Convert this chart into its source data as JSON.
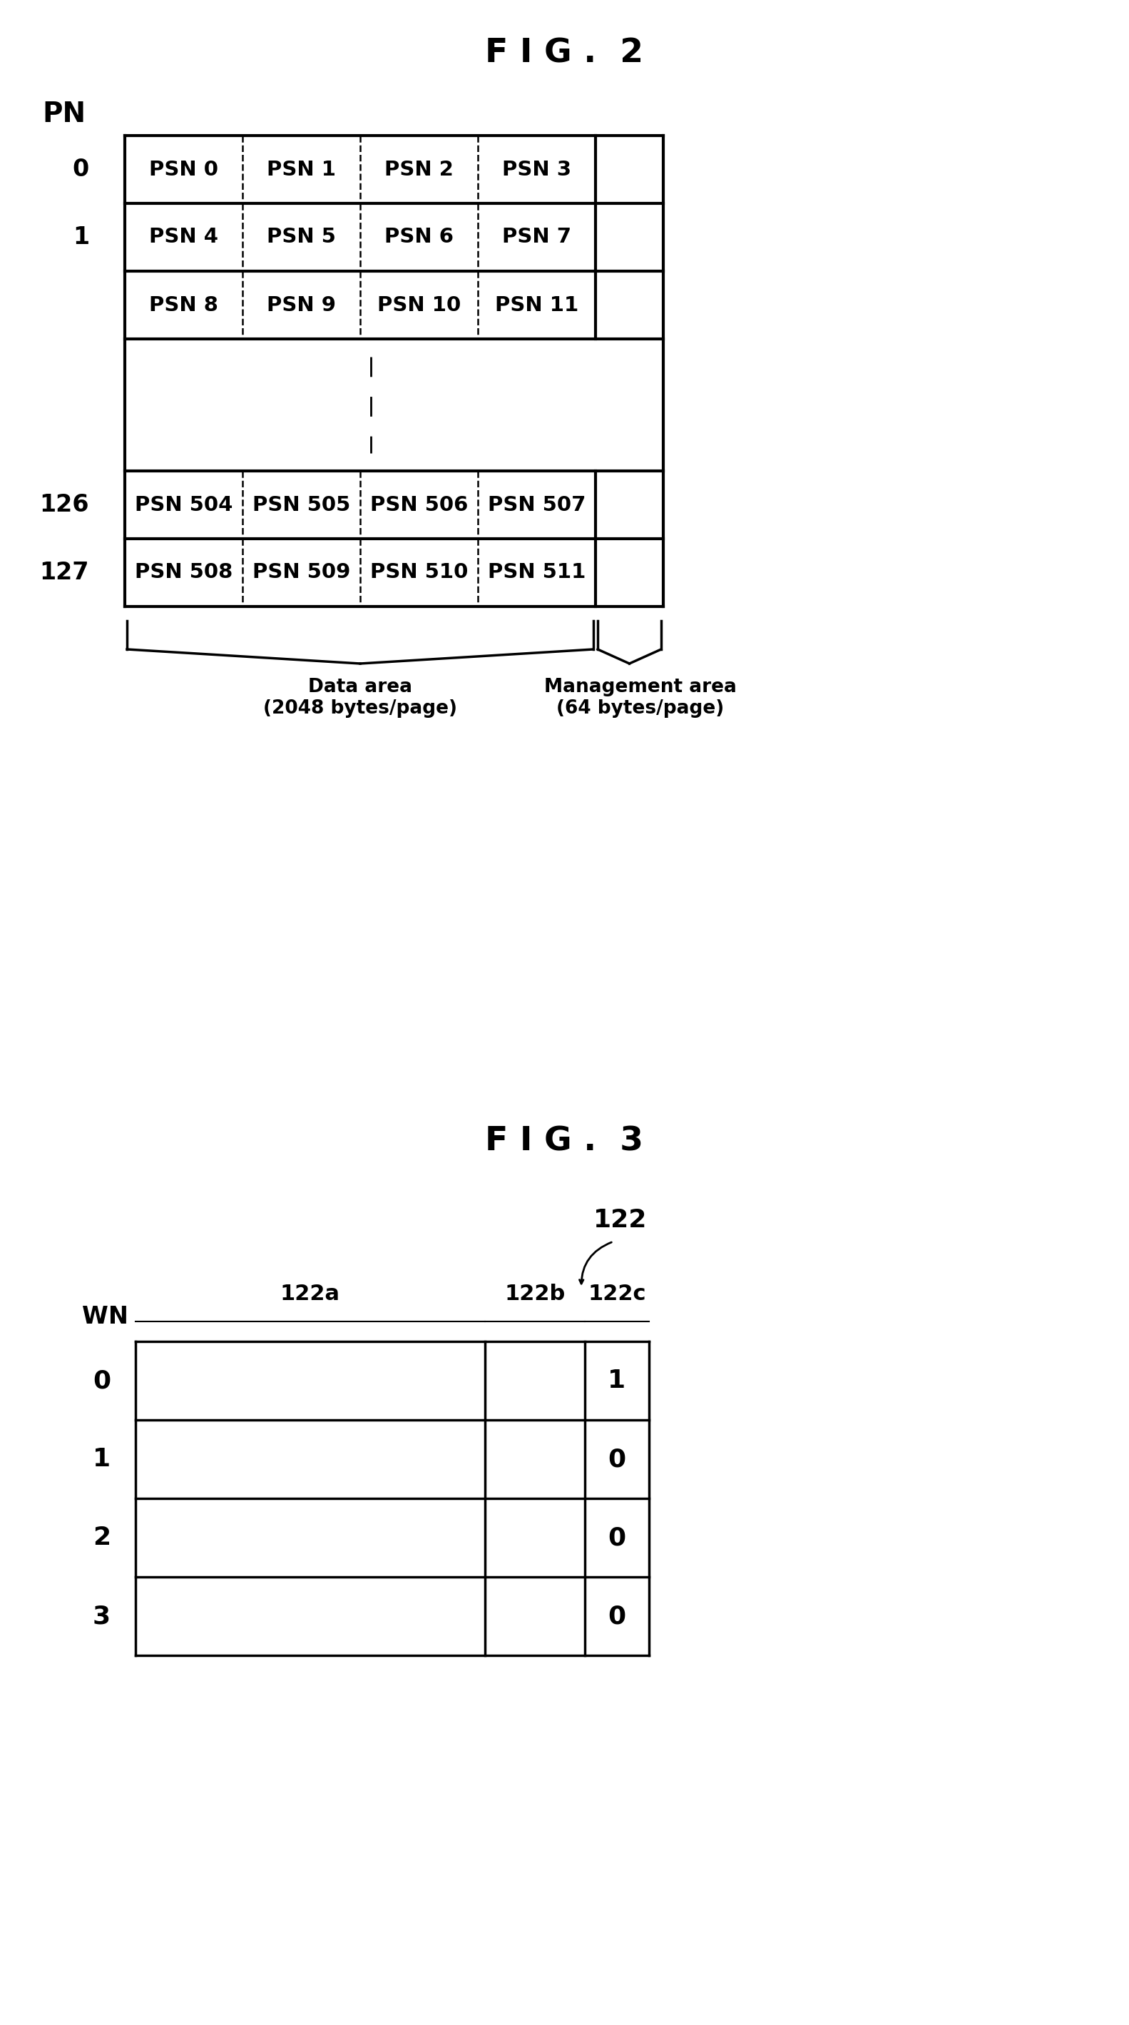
{
  "fig2_title": "F I G .  2",
  "fig3_title": "F I G .  3",
  "background_color": "#ffffff",
  "text_color": "#000000",
  "fig2": {
    "pn_label": "PN",
    "rows": [
      {
        "pn": "0",
        "cells": [
          "PSN 0",
          "PSN 1",
          "PSN 2",
          "PSN 3"
        ]
      },
      {
        "pn": "1",
        "cells": [
          "PSN 4",
          "PSN 5",
          "PSN 6",
          "PSN 7"
        ]
      },
      {
        "pn": "",
        "cells": [
          "PSN 8",
          "PSN 9",
          "PSN 10",
          "PSN 11"
        ]
      },
      {
        "pn": "126",
        "cells": [
          "PSN 504",
          "PSN 505",
          "PSN 506",
          "PSN 507"
        ]
      },
      {
        "pn": "127",
        "cells": [
          "PSN 508",
          "PSN 509",
          "PSN 510",
          "PSN 511"
        ]
      }
    ],
    "data_area_label": "Data area\n(2048 bytes/page)",
    "mgmt_area_label": "Management area\n(64 bytes/page)"
  },
  "fig3": {
    "ref_num": "122",
    "wn_label": "WN",
    "col_labels": [
      "122a",
      "122b",
      "122c"
    ],
    "rows": [
      {
        "wn": "0",
        "values": [
          "",
          "",
          "1"
        ]
      },
      {
        "wn": "1",
        "values": [
          "",
          "",
          "0"
        ]
      },
      {
        "wn": "2",
        "values": [
          "",
          "",
          "0"
        ]
      },
      {
        "wn": "3",
        "values": [
          "",
          "",
          "0"
        ]
      }
    ]
  }
}
